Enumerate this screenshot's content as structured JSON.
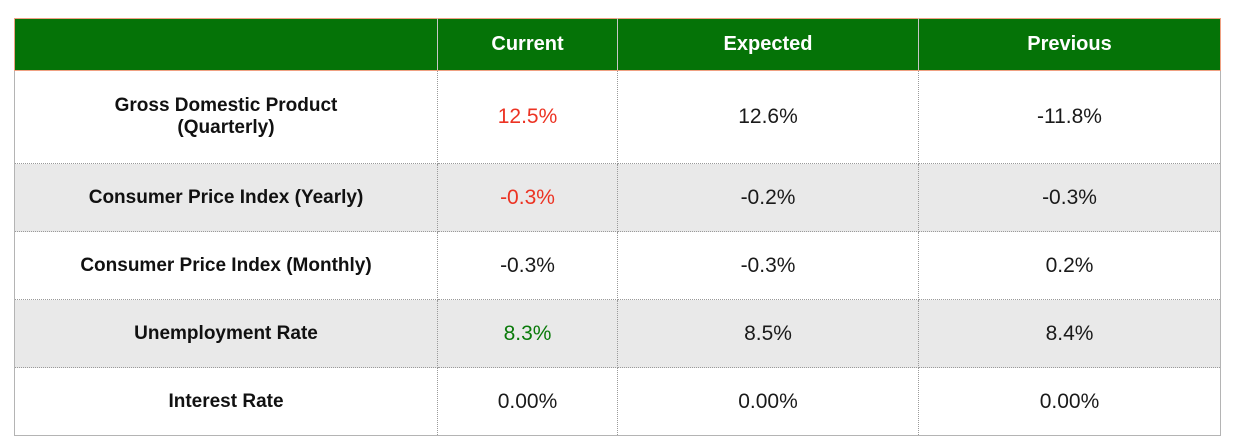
{
  "chart_data": {
    "type": "table",
    "columns": [
      "",
      "Current",
      "Expected",
      "Previous"
    ],
    "rows": [
      {
        "label": "Gross Domestic Product\n(Quarterly)",
        "current": "12.5%",
        "current_color": "#ec3323",
        "expected": "12.6%",
        "previous": "-11.8%",
        "shaded": false
      },
      {
        "label": "Consumer Price Index (Yearly)",
        "current": "-0.3%",
        "current_color": "#ec3323",
        "expected": "-0.2%",
        "previous": "-0.3%",
        "shaded": true
      },
      {
        "label": "Consumer Price Index (Monthly)",
        "current": "-0.3%",
        "current_color": "#1a1a1a",
        "expected": "-0.3%",
        "previous": "0.2%",
        "shaded": false
      },
      {
        "label": "Unemployment Rate",
        "current": "8.3%",
        "current_color": "#0a7a0a",
        "expected": "8.5%",
        "previous": "8.4%",
        "shaded": true
      },
      {
        "label": "Interest Rate",
        "current": "0.00%",
        "current_color": "#1a1a1a",
        "expected": "0.00%",
        "previous": "0.00%",
        "shaded": false
      }
    ],
    "layout": {
      "legend": "none",
      "grid": "dotted",
      "header_position": "top"
    }
  },
  "colors": {
    "header_bg": "#057307",
    "header_text": "#ffffff",
    "header_border": "#efa183",
    "shaded_row_bg": "#e9e9e9",
    "negative_red": "#ec3323",
    "positive_green": "#0a7a0a",
    "grid_dotted": "#9a9a9a",
    "outer_border": "#b4b4b4",
    "text_default": "#1a1a1a"
  }
}
